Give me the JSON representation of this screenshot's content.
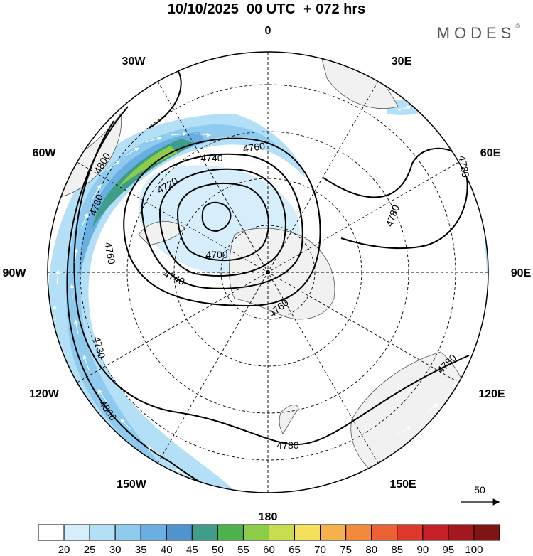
{
  "title": "10/10/2025  00 UTC  + 072 hrs",
  "brand": {
    "name": "MODES",
    "mark": "©"
  },
  "longitude_labels": [
    {
      "text": "0",
      "lon": 0
    },
    {
      "text": "30E",
      "lon": 30
    },
    {
      "text": "60E",
      "lon": 60
    },
    {
      "text": "90E",
      "lon": 90
    },
    {
      "text": "120E",
      "lon": 120
    },
    {
      "text": "150E",
      "lon": 150
    },
    {
      "text": "180",
      "lon": 180
    },
    {
      "text": "150W",
      "lon": -150
    },
    {
      "text": "120W",
      "lon": -120
    },
    {
      "text": "90W",
      "lon": -90
    },
    {
      "text": "60W",
      "lon": -60
    },
    {
      "text": "30W",
      "lon": -30
    }
  ],
  "contour_labels": [
    "4800",
    "4780",
    "4760",
    "4740",
    "4720",
    "4700",
    "4740",
    "4760",
    "4780",
    "4780",
    "4780",
    "4760",
    "4780",
    "4730",
    "4800"
  ],
  "vector_reference": {
    "value": "50"
  },
  "colorbar": {
    "ticks": [
      "20",
      "25",
      "30",
      "35",
      "40",
      "45",
      "50",
      "55",
      "60",
      "65",
      "70",
      "75",
      "80",
      "85",
      "90",
      "95",
      "100"
    ],
    "colors": [
      "#ffffff",
      "#d6eefb",
      "#b4e0f7",
      "#8ecbef",
      "#6aafe2",
      "#4f93cf",
      "#3e9e8a",
      "#4cb24c",
      "#8ccc46",
      "#c8de50",
      "#f5e05c",
      "#f6b04c",
      "#f28a3c",
      "#ea6234",
      "#dd3a2c",
      "#c52028",
      "#a3171f",
      "#7e1414"
    ]
  },
  "colors": {
    "land": "#f1f1f1",
    "coast": "#555555",
    "contour": "#000000",
    "grid": "#000000"
  }
}
